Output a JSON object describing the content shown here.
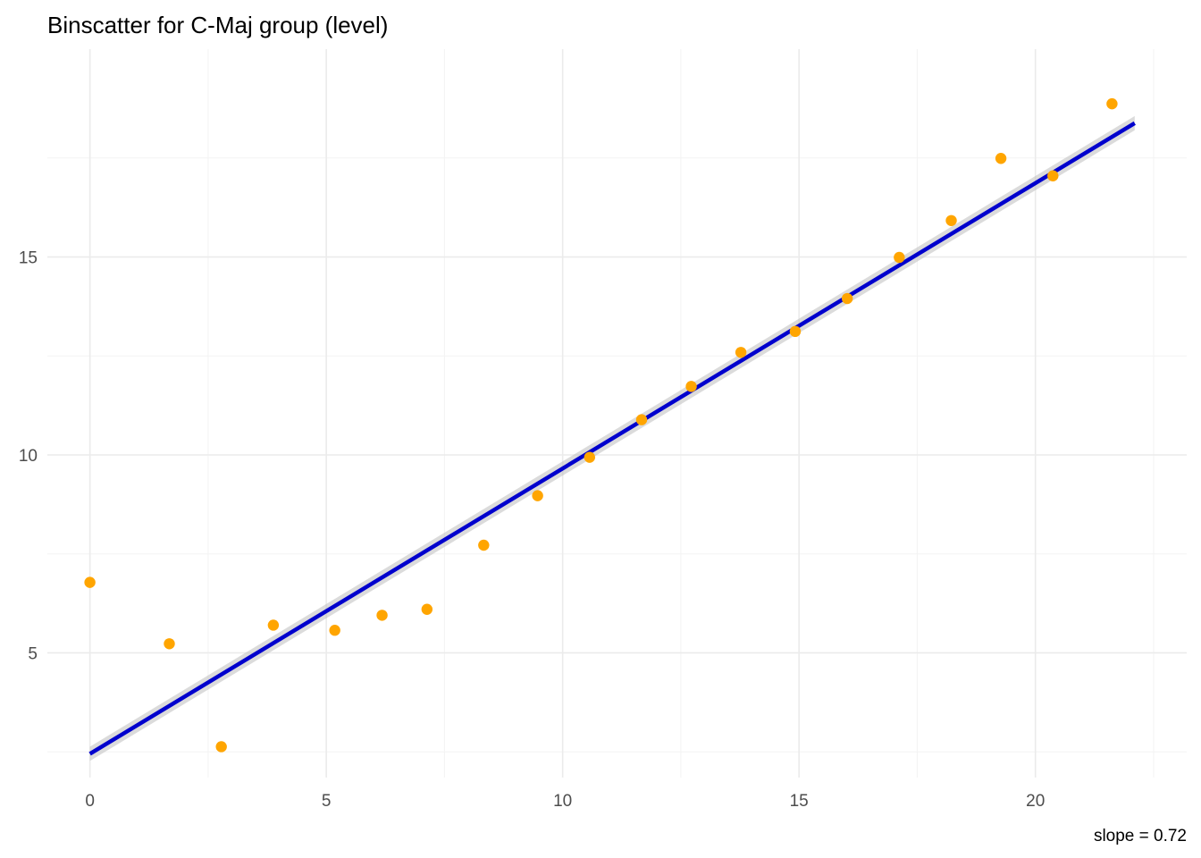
{
  "chart_data": {
    "type": "scatter",
    "title": "Binscatter for C-Maj group (level)",
    "caption": "slope = 0.72",
    "xlabel": "",
    "ylabel": "",
    "xlim": [
      -0.9,
      23.2
    ],
    "ylim": [
      1.85,
      20.25
    ],
    "x_ticks": [
      0,
      5,
      10,
      15,
      20
    ],
    "x_tick_labels": [
      "0",
      "5",
      "10",
      "15",
      "20"
    ],
    "y_ticks": [
      5,
      10,
      15
    ],
    "y_tick_labels": [
      "5",
      "10",
      "15"
    ],
    "x_minor_ticks": [
      2.5,
      7.5,
      12.5,
      17.5,
      22.5
    ],
    "y_minor_ticks": [
      2.5,
      7.5,
      12.5,
      17.5
    ],
    "grid": true,
    "legend": "none",
    "points": {
      "color": "#FFA500",
      "x": [
        0.0,
        1.68,
        2.78,
        3.88,
        5.18,
        6.18,
        7.13,
        8.33,
        9.47,
        10.57,
        11.67,
        12.72,
        13.77,
        14.92,
        16.02,
        17.12,
        18.22,
        19.27,
        20.37,
        21.62
      ],
      "y": [
        6.78,
        5.23,
        2.63,
        5.7,
        5.57,
        5.95,
        6.1,
        7.72,
        8.97,
        9.94,
        10.89,
        11.73,
        12.59,
        13.12,
        13.95,
        14.99,
        15.92,
        17.49,
        17.05,
        18.87
      ]
    },
    "fit_line": {
      "color": "#0000CD",
      "x": [
        0.0,
        22.1
      ],
      "y": [
        2.45,
        18.38
      ]
    }
  }
}
